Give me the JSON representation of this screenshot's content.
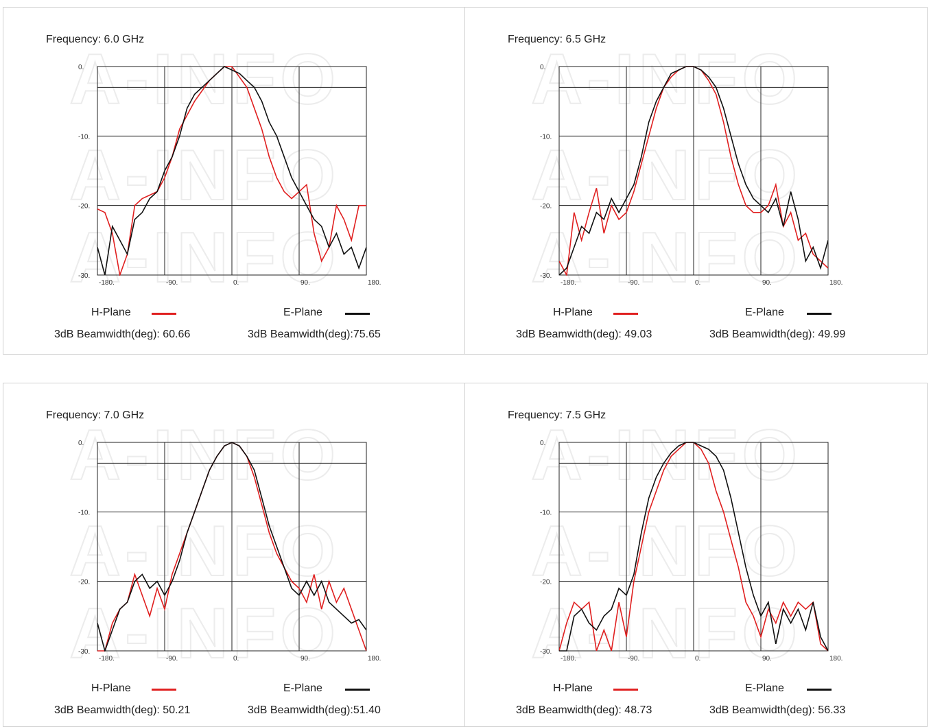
{
  "watermark": "A-INFO",
  "legend": {
    "h_label": "H-Plane",
    "e_label": "E-Plane",
    "h_color": "#e02020",
    "e_color": "#111111"
  },
  "panels": [
    {
      "frequency": "Frequency: 6.0 GHz",
      "h_bw": "3dB Beamwidth(deg): 60.66",
      "e_bw": "3dB Beamwidth(deg):75.65"
    },
    {
      "frequency": "Frequency: 6.5 GHz",
      "h_bw": "3dB Beamwidth(deg): 49.03",
      "e_bw": "3dB Beamwidth(deg): 49.99"
    },
    {
      "frequency": "Frequency: 7.0 GHz",
      "h_bw": "3dB Beamwidth(deg): 50.21",
      "e_bw": "3dB Beamwidth(deg):51.40"
    },
    {
      "frequency": "Frequency: 7.5 GHz",
      "h_bw": "3dB Beamwidth(deg): 48.73",
      "e_bw": "3dB Beamwidth(deg): 56.33"
    }
  ],
  "chart_data": [
    {
      "type": "line",
      "title": "Frequency: 6.0 GHz",
      "xlim": [
        -180,
        180
      ],
      "ylim": [
        -30,
        0
      ],
      "x_ticks": [
        "-180.",
        "-90.",
        "0.",
        "90.",
        "180."
      ],
      "y_ticks": [
        "0.",
        "-10.",
        "-20.",
        "-30."
      ],
      "grid": true,
      "series": [
        {
          "name": "H-Plane",
          "color": "#e02020",
          "x": [
            -180,
            -170,
            -160,
            -150,
            -140,
            -130,
            -120,
            -110,
            -100,
            -90,
            -80,
            -70,
            -60,
            -50,
            -40,
            -30,
            -20,
            -10,
            0,
            10,
            20,
            30,
            40,
            50,
            60,
            70,
            80,
            90,
            100,
            110,
            120,
            130,
            140,
            150,
            160,
            170,
            180
          ],
          "y": [
            -20.5,
            -21,
            -24,
            -30,
            -27,
            -20,
            -19,
            -18.5,
            -18,
            -16,
            -13,
            -9,
            -7,
            -5,
            -3.5,
            -2,
            -1,
            0,
            0,
            -1.5,
            -3,
            -6,
            -9,
            -13,
            -16,
            -18,
            -19,
            -18,
            -17,
            -24,
            -28,
            -26,
            -20,
            -22,
            -25,
            -20,
            -20
          ]
        },
        {
          "name": "E-Plane",
          "color": "#111111",
          "x": [
            -180,
            -170,
            -160,
            -150,
            -140,
            -130,
            -120,
            -110,
            -100,
            -90,
            -80,
            -70,
            -60,
            -50,
            -40,
            -30,
            -20,
            -10,
            0,
            10,
            20,
            30,
            40,
            50,
            60,
            70,
            80,
            90,
            100,
            110,
            120,
            130,
            140,
            150,
            160,
            170,
            180
          ],
          "y": [
            -26,
            -30,
            -23,
            -25,
            -27,
            -22,
            -21,
            -19,
            -18,
            -15,
            -13,
            -10,
            -6,
            -4,
            -3,
            -2,
            -1,
            0,
            -0.5,
            -1,
            -2,
            -3,
            -5,
            -8,
            -10,
            -13,
            -16,
            -18,
            -20,
            -22,
            -23,
            -26,
            -24,
            -27,
            -26,
            -29,
            -26
          ]
        }
      ]
    },
    {
      "type": "line",
      "title": "Frequency: 6.5 GHz",
      "xlim": [
        -180,
        180
      ],
      "ylim": [
        -30,
        0
      ],
      "x_ticks": [
        "-180.",
        "-90.",
        "0.",
        "90.",
        "180."
      ],
      "y_ticks": [
        "0.",
        "-10.",
        "-20.",
        "-30."
      ],
      "grid": true,
      "series": [
        {
          "name": "H-Plane",
          "color": "#e02020",
          "x": [
            -180,
            -170,
            -160,
            -150,
            -140,
            -130,
            -120,
            -110,
            -100,
            -90,
            -80,
            -70,
            -60,
            -50,
            -40,
            -30,
            -20,
            -10,
            0,
            10,
            20,
            30,
            40,
            50,
            60,
            70,
            80,
            90,
            100,
            110,
            120,
            130,
            140,
            150,
            160,
            170,
            180
          ],
          "y": [
            -28,
            -30,
            -21,
            -25,
            -21,
            -17.5,
            -24,
            -20,
            -22,
            -21,
            -18,
            -14,
            -10,
            -6,
            -3,
            -1.5,
            -0.5,
            0,
            0,
            -0.5,
            -2,
            -4,
            -8,
            -13,
            -17,
            -20,
            -21,
            -21,
            -20,
            -17,
            -23,
            -21,
            -25,
            -24,
            -27,
            -28,
            -29
          ]
        },
        {
          "name": "E-Plane",
          "color": "#111111",
          "x": [
            -180,
            -170,
            -160,
            -150,
            -140,
            -130,
            -120,
            -110,
            -100,
            -90,
            -80,
            -70,
            -60,
            -50,
            -40,
            -30,
            -20,
            -10,
            0,
            10,
            20,
            30,
            40,
            50,
            60,
            70,
            80,
            90,
            100,
            110,
            120,
            130,
            140,
            150,
            160,
            170,
            180
          ],
          "y": [
            -30,
            -29,
            -26,
            -23,
            -24,
            -21,
            -22,
            -19,
            -21,
            -19,
            -17,
            -13,
            -8,
            -5,
            -3,
            -1,
            -0.5,
            0,
            0,
            -0.5,
            -1.5,
            -3,
            -6,
            -10,
            -14,
            -17,
            -19,
            -20,
            -21,
            -19,
            -23,
            -18,
            -22,
            -28,
            -26,
            -29,
            -25
          ]
        }
      ]
    },
    {
      "type": "line",
      "title": "Frequency: 7.0 GHz",
      "xlim": [
        -180,
        180
      ],
      "ylim": [
        -30,
        0
      ],
      "x_ticks": [
        "-180.",
        "-90.",
        "0.",
        "90.",
        "180."
      ],
      "y_ticks": [
        "0.",
        "-10.",
        "-20.",
        "-30."
      ],
      "grid": true,
      "series": [
        {
          "name": "H-Plane",
          "color": "#e02020",
          "x": [
            -180,
            -170,
            -160,
            -150,
            -140,
            -130,
            -120,
            -110,
            -100,
            -90,
            -80,
            -70,
            -60,
            -50,
            -40,
            -30,
            -20,
            -10,
            0,
            10,
            20,
            30,
            40,
            50,
            60,
            70,
            80,
            90,
            100,
            110,
            120,
            130,
            140,
            150,
            160,
            170,
            180
          ],
          "y": [
            -30,
            -30,
            -26,
            -24,
            -23,
            -19,
            -22,
            -25,
            -21,
            -24,
            -19,
            -16,
            -13,
            -10,
            -7,
            -4,
            -2,
            -0.5,
            0,
            -0.5,
            -2,
            -5,
            -9,
            -13,
            -16,
            -18,
            -20,
            -21,
            -23,
            -19,
            -24,
            -20,
            -23,
            -21,
            -24,
            -27,
            -30
          ]
        },
        {
          "name": "E-Plane",
          "color": "#111111",
          "x": [
            -180,
            -170,
            -160,
            -150,
            -140,
            -130,
            -120,
            -110,
            -100,
            -90,
            -80,
            -70,
            -60,
            -50,
            -40,
            -30,
            -20,
            -10,
            0,
            10,
            20,
            30,
            40,
            50,
            60,
            70,
            80,
            90,
            100,
            110,
            120,
            130,
            140,
            150,
            160,
            170,
            180
          ],
          "y": [
            -26,
            -30,
            -27,
            -24,
            -23,
            -20,
            -19,
            -21,
            -20,
            -22,
            -20,
            -17,
            -13,
            -10,
            -7,
            -4,
            -2,
            -0.5,
            0,
            -0.5,
            -2,
            -4,
            -8,
            -12,
            -15,
            -18,
            -21,
            -22,
            -20,
            -22,
            -20,
            -23,
            -24,
            -25,
            -26,
            -25.5,
            -27
          ]
        }
      ]
    },
    {
      "type": "line",
      "title": "Frequency: 7.5 GHz",
      "xlim": [
        -180,
        180
      ],
      "ylim": [
        -30,
        0
      ],
      "x_ticks": [
        "-180.",
        "-90.",
        "0.",
        "90.",
        "180."
      ],
      "y_ticks": [
        "0.",
        "-10.",
        "-20.",
        "-30."
      ],
      "grid": true,
      "series": [
        {
          "name": "H-Plane",
          "color": "#e02020",
          "x": [
            -180,
            -170,
            -160,
            -150,
            -140,
            -130,
            -120,
            -110,
            -100,
            -90,
            -80,
            -70,
            -60,
            -50,
            -40,
            -30,
            -20,
            -10,
            0,
            10,
            20,
            30,
            40,
            50,
            60,
            70,
            80,
            90,
            100,
            110,
            120,
            130,
            140,
            150,
            160,
            170,
            180
          ],
          "y": [
            -30,
            -26,
            -23,
            -24,
            -23,
            -30,
            -27,
            -30,
            -23,
            -28,
            -20,
            -15,
            -10,
            -7,
            -4,
            -2,
            -1,
            0,
            0,
            -1,
            -3,
            -7,
            -10,
            -14,
            -18,
            -23,
            -25,
            -28,
            -24,
            -26,
            -23,
            -25,
            -23,
            -24,
            -23,
            -29,
            -30
          ]
        },
        {
          "name": "E-Plane",
          "color": "#111111",
          "x": [
            -180,
            -170,
            -160,
            -150,
            -140,
            -130,
            -120,
            -110,
            -100,
            -90,
            -80,
            -70,
            -60,
            -50,
            -40,
            -30,
            -20,
            -10,
            0,
            10,
            20,
            30,
            40,
            50,
            60,
            70,
            80,
            90,
            100,
            110,
            120,
            130,
            140,
            150,
            160,
            170,
            180
          ],
          "y": [
            -30,
            -30,
            -25,
            -24,
            -26,
            -27,
            -25,
            -24,
            -21,
            -22,
            -19,
            -13,
            -8,
            -5,
            -3,
            -1.5,
            -0.5,
            0,
            0,
            -0.5,
            -1,
            -2,
            -4,
            -8,
            -13,
            -18,
            -22,
            -25,
            -23,
            -29,
            -24,
            -26,
            -24,
            -27,
            -23,
            -28,
            -30
          ]
        }
      ]
    }
  ]
}
